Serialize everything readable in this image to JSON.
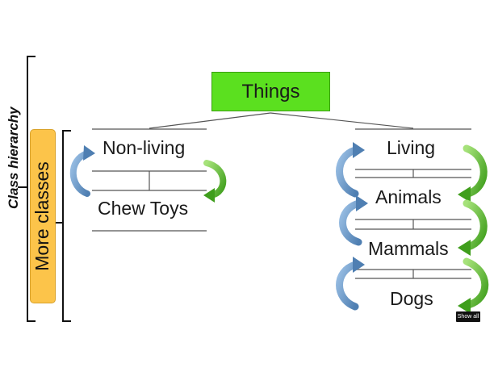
{
  "diagram": {
    "root_label": "Things",
    "hierarchy_label": "Class hierarchy",
    "more_classes_label": "More classes",
    "left_branch": {
      "parent": "Non-living",
      "child": "Chew Toys"
    },
    "right_branch": {
      "items": [
        "Living",
        "Animals",
        "Mammals",
        "Dogs"
      ]
    },
    "colors": {
      "root_fill": "#5be01f",
      "more_classes_fill": "#fcc44a",
      "arrow_blue": "#6b9bc8",
      "arrow_green": "#66c531",
      "line": "#555555"
    }
  },
  "controls": {
    "show_all_label": "Show all"
  }
}
